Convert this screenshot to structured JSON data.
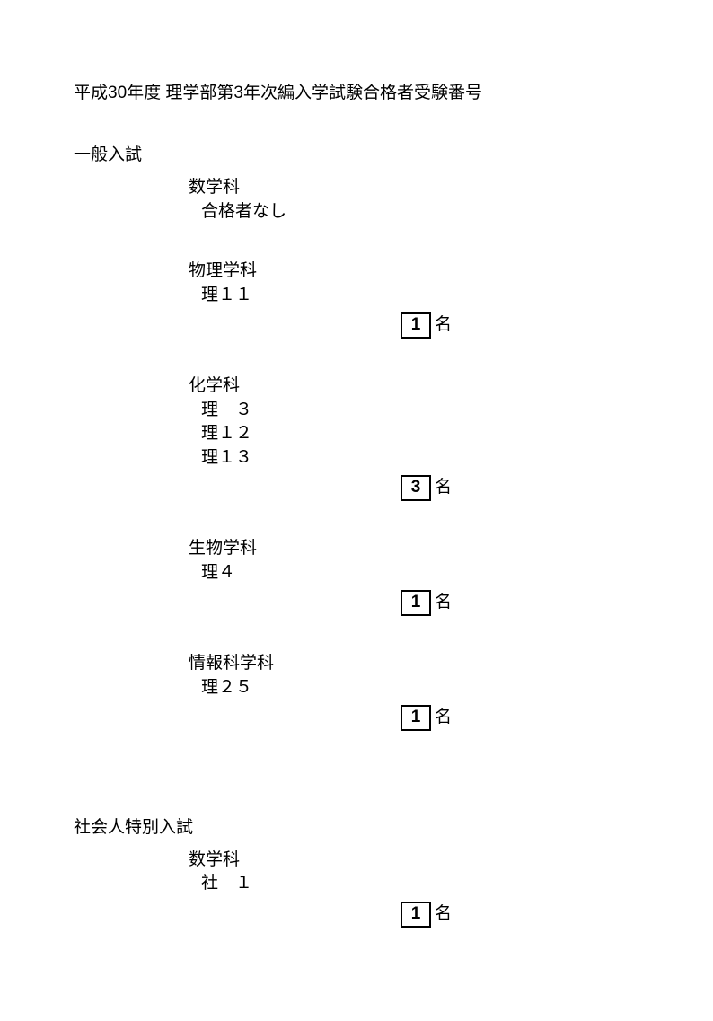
{
  "title": "平成30年度 理学部第3年次編入学試験合格者受験番号",
  "count_suffix": "名",
  "sections": [
    {
      "exam_type": "一般入試",
      "departments": [
        {
          "name": "数学科",
          "no_pass_text": "合格者なし",
          "ids": [],
          "count": null
        },
        {
          "name": "物理学科",
          "no_pass_text": null,
          "ids": [
            "理１１"
          ],
          "count": "1"
        },
        {
          "name": "化学科",
          "no_pass_text": null,
          "ids": [
            "理　３",
            "理１２",
            "理１３"
          ],
          "count": "3"
        },
        {
          "name": "生物学科",
          "no_pass_text": null,
          "ids": [
            "理４"
          ],
          "count": "1"
        },
        {
          "name": "情報科学科",
          "no_pass_text": null,
          "ids": [
            "理２５"
          ],
          "count": "1"
        }
      ]
    },
    {
      "exam_type": "社会人特別入試",
      "departments": [
        {
          "name": "数学科",
          "no_pass_text": null,
          "ids": [
            "社　１"
          ],
          "count": "1"
        }
      ]
    }
  ],
  "style": {
    "background_color": "#ffffff",
    "text_color": "#000000",
    "box_border_color": "#000000",
    "title_fontsize": 19,
    "body_fontsize": 19
  }
}
